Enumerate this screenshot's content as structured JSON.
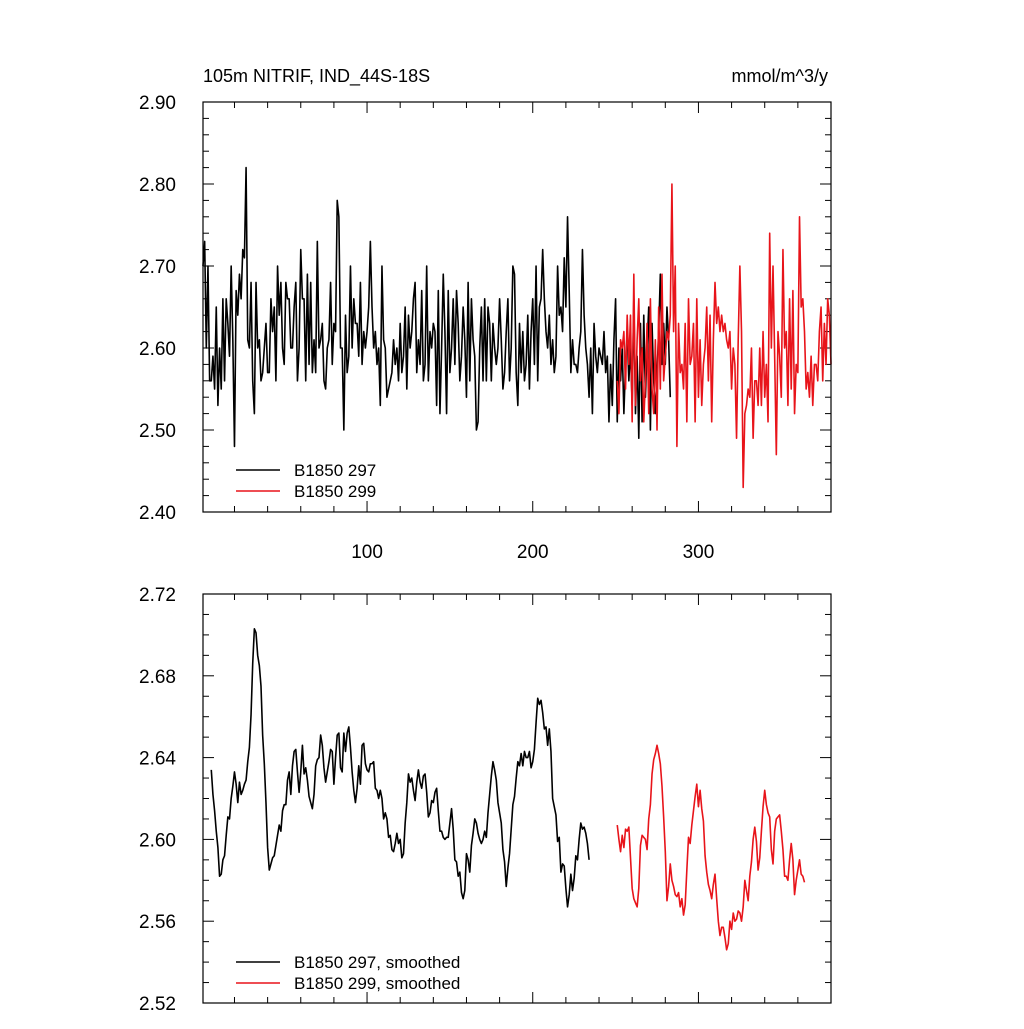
{
  "colors": {
    "run_297": "#000000",
    "run_299": "#e8141a"
  },
  "chart_data": [
    {
      "type": "line",
      "title": "105m NITRIF, IND_44S-18S",
      "units": "mmol/m^3/y",
      "xlim": [
        1,
        380
      ],
      "ylim": [
        2.4,
        2.9
      ],
      "y_ticks": [
        "2.40",
        "2.50",
        "2.60",
        "2.70",
        "2.80",
        "2.90"
      ],
      "x_ticks": [
        "100",
        "200",
        "300"
      ],
      "legend_position": "bottom-left",
      "series": [
        {
          "name": "B1850 297",
          "color": "#000000",
          "x_start": 1,
          "values": [
            2.7,
            2.73,
            2.6,
            2.7,
            2.56,
            2.56,
            2.59,
            2.55,
            2.65,
            2.53,
            2.6,
            2.55,
            2.66,
            2.56,
            2.66,
            2.63,
            2.59,
            2.7,
            2.61,
            2.48,
            2.67,
            2.64,
            2.69,
            2.66,
            2.72,
            2.71,
            2.82,
            2.61,
            2.6,
            2.68,
            2.56,
            2.52,
            2.68,
            2.6,
            2.61,
            2.56,
            2.57,
            2.6,
            2.63,
            2.57,
            2.57,
            2.66,
            2.62,
            2.65,
            2.56,
            2.7,
            2.64,
            2.68,
            2.6,
            2.58,
            2.68,
            2.66,
            2.66,
            2.6,
            2.6,
            2.65,
            2.68,
            2.56,
            2.6,
            2.72,
            2.66,
            2.66,
            2.56,
            2.69,
            2.58,
            2.68,
            2.57,
            2.61,
            2.57,
            2.73,
            2.6,
            2.61,
            2.63,
            2.56,
            2.55,
            2.6,
            2.61,
            2.68,
            2.58,
            2.63,
            2.62,
            2.78,
            2.76,
            2.6,
            2.6,
            2.5,
            2.64,
            2.57,
            2.59,
            2.7,
            2.6,
            2.66,
            2.63,
            2.63,
            2.59,
            2.68,
            2.58,
            2.62,
            2.6,
            2.62,
            2.65,
            2.73,
            2.65,
            2.6,
            2.62,
            2.58,
            2.6,
            2.53,
            2.7,
            2.61,
            2.6,
            2.54,
            2.55,
            2.56,
            2.57,
            2.61,
            2.58,
            2.6,
            2.56,
            2.63,
            2.57,
            2.59,
            2.65,
            2.55,
            2.64,
            2.6,
            2.62,
            2.66,
            2.68,
            2.57,
            2.61,
            2.58,
            2.67,
            2.56,
            2.58,
            2.7,
            2.56,
            2.62,
            2.6,
            2.63,
            2.62,
            2.53,
            2.67,
            2.52,
            2.6,
            2.69,
            2.62,
            2.52,
            2.67,
            2.57,
            2.6,
            2.66,
            2.58,
            2.67,
            2.63,
            2.56,
            2.59,
            2.65,
            2.61,
            2.54,
            2.68,
            2.56,
            2.66,
            2.61,
            2.59,
            2.5,
            2.51,
            2.6,
            2.65,
            2.56,
            2.66,
            2.56,
            2.65,
            2.63,
            2.56,
            2.63,
            2.6,
            2.58,
            2.6,
            2.66,
            2.61,
            2.55,
            2.57,
            2.62,
            2.66,
            2.56,
            2.6,
            2.7,
            2.69,
            2.57,
            2.53,
            2.63,
            2.57,
            2.62,
            2.56,
            2.58,
            2.64,
            2.55,
            2.62,
            2.66,
            2.58,
            2.7,
            2.56,
            2.65,
            2.66,
            2.72,
            2.66,
            2.62,
            2.6,
            2.64,
            2.58,
            2.61,
            2.57,
            2.59,
            2.7,
            2.64,
            2.65,
            2.62,
            2.71,
            2.65,
            2.76,
            2.67,
            2.57,
            2.61,
            2.58,
            2.58,
            2.57,
            2.6,
            2.62,
            2.72,
            2.64,
            2.6,
            2.58,
            2.54,
            2.6,
            2.52,
            2.63,
            2.59,
            2.57,
            2.6,
            2.59,
            2.58,
            2.62,
            2.57,
            2.59,
            2.51,
            2.58,
            2.53,
            2.61,
            2.66,
            2.51,
            2.6,
            2.56,
            2.6,
            2.52,
            2.58,
            2.62,
            2.56,
            2.6,
            2.53,
            2.66,
            2.52,
            2.59,
            2.49,
            2.63,
            2.51,
            2.64,
            2.54,
            2.6,
            2.65,
            2.5,
            2.63,
            2.56,
            2.52,
            2.57,
            2.62,
            2.69,
            2.58,
            2.63,
            2.58,
            2.65,
            2.61,
            2.54
          ]
        },
        {
          "name": "B1850 299",
          "color": "#e8141a",
          "x_start": 251,
          "values": [
            2.56,
            2.52,
            2.61,
            2.6,
            2.62,
            2.55,
            2.64,
            2.58,
            2.64,
            2.51,
            2.69,
            2.53,
            2.61,
            2.66,
            2.56,
            2.6,
            2.51,
            2.56,
            2.63,
            2.52,
            2.66,
            2.55,
            2.52,
            2.61,
            2.5,
            2.65,
            2.55,
            2.69,
            2.56,
            2.59,
            2.62,
            2.61,
            2.64,
            2.8,
            2.62,
            2.7,
            2.48,
            2.63,
            2.57,
            2.58,
            2.55,
            2.63,
            2.51,
            2.66,
            2.58,
            2.59,
            2.63,
            2.51,
            2.66,
            2.54,
            2.61,
            2.53,
            2.58,
            2.6,
            2.65,
            2.56,
            2.64,
            2.51,
            2.61,
            2.68,
            2.63,
            2.65,
            2.62,
            2.64,
            2.62,
            2.63,
            2.61,
            2.6,
            2.62,
            2.55,
            2.6,
            2.58,
            2.49,
            2.61,
            2.7,
            2.62,
            2.43,
            2.52,
            2.53,
            2.55,
            2.54,
            2.6,
            2.49,
            2.56,
            2.56,
            2.53,
            2.6,
            2.53,
            2.62,
            2.54,
            2.58,
            2.51,
            2.74,
            2.6,
            2.7,
            2.59,
            2.47,
            2.62,
            2.59,
            2.54,
            2.72,
            2.6,
            2.62,
            2.53,
            2.66,
            2.55,
            2.67,
            2.52,
            2.58,
            2.57,
            2.76,
            2.65,
            2.66,
            2.62,
            2.55,
            2.57,
            2.54,
            2.59,
            2.53,
            2.58,
            2.58,
            2.56,
            2.62,
            2.65,
            2.56,
            2.63,
            2.58,
            2.66,
            2.64,
            2.58
          ]
        }
      ]
    },
    {
      "type": "line",
      "xlim": [
        1,
        380
      ],
      "ylim": [
        2.52,
        2.72
      ],
      "y_ticks": [
        "2.52",
        "2.56",
        "2.60",
        "2.64",
        "2.68",
        "2.72"
      ],
      "legend_position": "bottom-left",
      "series": [
        {
          "name": "B1850 297, smoothed",
          "color": "#000000",
          "x_start": 6,
          "values": [
            2.634,
            2.622,
            2.614,
            2.604,
            2.596,
            2.582,
            2.583,
            2.59,
            2.592,
            2.602,
            2.611,
            2.61,
            2.62,
            2.626,
            2.633,
            2.627,
            2.618,
            2.628,
            2.622,
            2.624,
            2.627,
            2.629,
            2.638,
            2.645,
            2.661,
            2.686,
            2.703,
            2.701,
            2.69,
            2.685,
            2.675,
            2.651,
            2.637,
            2.618,
            2.596,
            2.585,
            2.588,
            2.591,
            2.592,
            2.597,
            2.602,
            2.607,
            2.604,
            2.614,
            2.617,
            2.617,
            2.629,
            2.633,
            2.622,
            2.636,
            2.643,
            2.644,
            2.633,
            2.623,
            2.633,
            2.646,
            2.632,
            2.635,
            2.629,
            2.621,
            2.618,
            2.615,
            2.622,
            2.636,
            2.639,
            2.64,
            2.651,
            2.646,
            2.635,
            2.628,
            2.633,
            2.638,
            2.644,
            2.643,
            2.627,
            2.64,
            2.651,
            2.652,
            2.635,
            2.633,
            2.652,
            2.643,
            2.652,
            2.655,
            2.645,
            2.633,
            2.624,
            2.618,
            2.625,
            2.636,
            2.627,
            2.646,
            2.647,
            2.637,
            2.634,
            2.633,
            2.637,
            2.637,
            2.638,
            2.625,
            2.624,
            2.62,
            2.624,
            2.62,
            2.61,
            2.613,
            2.61,
            2.601,
            2.602,
            2.595,
            2.594,
            2.598,
            2.603,
            2.598,
            2.6,
            2.591,
            2.593,
            2.608,
            2.618,
            2.632,
            2.628,
            2.63,
            2.624,
            2.619,
            2.628,
            2.634,
            2.628,
            2.625,
            2.631,
            2.632,
            2.623,
            2.611,
            2.613,
            2.619,
            2.618,
            2.623,
            2.625,
            2.614,
            2.604,
            2.604,
            2.601,
            2.6,
            2.601,
            2.601,
            2.608,
            2.615,
            2.605,
            2.59,
            2.589,
            2.582,
            2.584,
            2.574,
            2.571,
            2.575,
            2.593,
            2.59,
            2.584,
            2.597,
            2.603,
            2.61,
            2.608,
            2.603,
            2.6,
            2.598,
            2.6,
            2.604,
            2.601,
            2.613,
            2.622,
            2.631,
            2.638,
            2.634,
            2.629,
            2.618,
            2.613,
            2.608,
            2.595,
            2.589,
            2.577,
            2.586,
            2.593,
            2.605,
            2.617,
            2.621,
            2.63,
            2.638,
            2.636,
            2.642,
            2.636,
            2.643,
            2.64,
            2.64,
            2.643,
            2.635,
            2.638,
            2.644,
            2.657,
            2.669,
            2.666,
            2.668,
            2.662,
            2.654,
            2.655,
            2.646,
            2.654,
            2.643,
            2.62,
            2.616,
            2.612,
            2.599,
            2.601,
            2.584,
            2.588,
            2.587,
            2.576,
            2.567,
            2.573,
            2.583,
            2.575,
            2.581,
            2.592,
            2.59,
            2.6,
            2.608,
            2.605,
            2.606,
            2.603,
            2.598,
            2.59
          ]
        },
        {
          "name": "B1850 299, smoothed",
          "color": "#e8141a",
          "x_start": 251,
          "values": [
            2.607,
            2.6,
            2.594,
            2.602,
            2.596,
            2.605,
            2.604,
            2.606,
            2.591,
            2.576,
            2.571,
            2.569,
            2.567,
            2.576,
            2.597,
            2.602,
            2.601,
            2.6,
            2.595,
            2.61,
            2.617,
            2.632,
            2.639,
            2.642,
            2.646,
            2.642,
            2.637,
            2.626,
            2.611,
            2.594,
            2.57,
            2.577,
            2.588,
            2.58,
            2.577,
            2.573,
            2.572,
            2.574,
            2.567,
            2.571,
            2.563,
            2.568,
            2.585,
            2.601,
            2.598,
            2.607,
            2.614,
            2.621,
            2.627,
            2.616,
            2.624,
            2.615,
            2.609,
            2.592,
            2.584,
            2.578,
            2.575,
            2.571,
            2.578,
            2.583,
            2.571,
            2.56,
            2.553,
            2.557,
            2.557,
            2.552,
            2.546,
            2.549,
            2.56,
            2.556,
            2.564,
            2.56,
            2.561,
            2.565,
            2.564,
            2.56,
            2.567,
            2.58,
            2.575,
            2.57,
            2.582,
            2.589,
            2.6,
            2.606,
            2.599,
            2.585,
            2.591,
            2.604,
            2.616,
            2.624,
            2.617,
            2.613,
            2.611,
            2.595,
            2.588,
            2.604,
            2.61,
            2.611,
            2.612,
            2.604,
            2.595,
            2.582,
            2.582,
            2.58,
            2.59,
            2.598,
            2.59,
            2.573,
            2.58,
            2.585,
            2.59,
            2.583,
            2.582,
            2.579
          ]
        }
      ]
    }
  ]
}
